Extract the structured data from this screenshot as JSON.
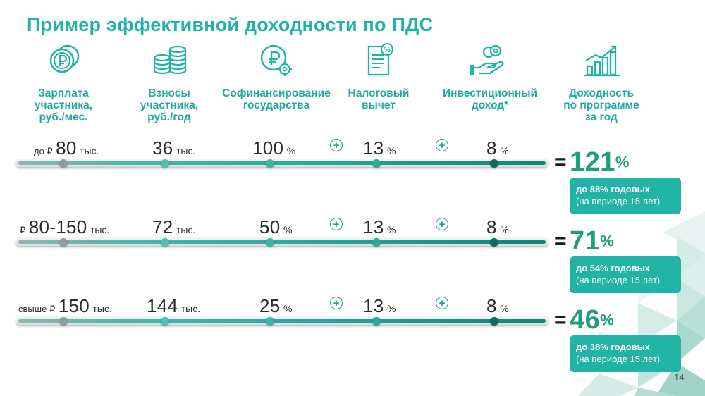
{
  "slide": {
    "title": "Пример эффективной доходности по ПДС",
    "page_number": "14"
  },
  "columns": [
    {
      "icon": "ruble-coins-icon",
      "label_lines": [
        "Зарплата",
        "участника,",
        "руб./мес."
      ]
    },
    {
      "icon": "coin-stacks-icon",
      "label_lines": [
        "Взносы",
        "участника,",
        "руб./год"
      ]
    },
    {
      "icon": "ruble-gear-icon",
      "label_lines": [
        "Софинансирование",
        "государства"
      ]
    },
    {
      "icon": "tax-document-icon",
      "label_lines": [
        "Налоговый",
        "вычет"
      ]
    },
    {
      "icon": "hand-coins-icon",
      "label_lines": [
        "Инвестиционный",
        "доход*"
      ]
    },
    {
      "icon": "growth-chart-icon",
      "label_lines": [
        "Доходность",
        "по программе",
        "за год"
      ]
    }
  ],
  "rows": [
    {
      "salary": {
        "prefix": "до ₽",
        "value": "80",
        "suffix": "тыс."
      },
      "contribution": {
        "value": "36",
        "suffix": "тыс."
      },
      "cofinancing": {
        "value": "100",
        "suffix": "%"
      },
      "tax": {
        "value": "13",
        "suffix": "%"
      },
      "investment": {
        "value": "8",
        "suffix": "%"
      },
      "result": {
        "eq": "=",
        "value": "121",
        "suffix": "%"
      },
      "note": {
        "line1": "до 88% годовых",
        "line2": "(на периоде 15 лет)"
      }
    },
    {
      "salary": {
        "prefix": "₽",
        "value": "80-150",
        "suffix": "тыс."
      },
      "contribution": {
        "value": "72",
        "suffix": "тыс."
      },
      "cofinancing": {
        "value": "50",
        "suffix": "%"
      },
      "tax": {
        "value": "13",
        "suffix": "%"
      },
      "investment": {
        "value": "8",
        "suffix": "%"
      },
      "result": {
        "eq": "=",
        "value": "71",
        "suffix": "%"
      },
      "note": {
        "line1": "до 54% годовых",
        "line2": "(на периоде 15 лет)"
      }
    },
    {
      "salary": {
        "prefix": "свыше ₽",
        "value": "150",
        "suffix": "тыс."
      },
      "contribution": {
        "value": "144",
        "suffix": "тыс."
      },
      "cofinancing": {
        "value": "25",
        "suffix": "%"
      },
      "tax": {
        "value": "13",
        "suffix": "%"
      },
      "investment": {
        "value": "8",
        "suffix": "%"
      },
      "result": {
        "eq": "=",
        "value": "46",
        "suffix": "%"
      },
      "note": {
        "line1": "до 38% годовых",
        "line2": "(на периоде 15 лет)"
      }
    }
  ],
  "plus_symbol": "+",
  "colors": {
    "accent": "#22b3a7",
    "result_green": "#1f9e7f",
    "dark_dot": "#0e6b5e"
  }
}
